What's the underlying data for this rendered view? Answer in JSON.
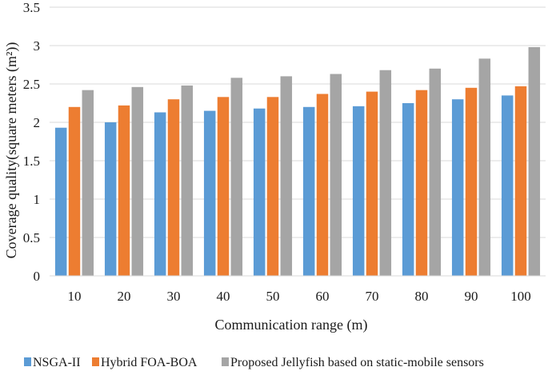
{
  "chart_data": {
    "type": "bar",
    "title": "",
    "xlabel": "Communication range (m)",
    "ylabel": "Coverage quality(square meters (m²))",
    "categories": [
      "10",
      "20",
      "30",
      "40",
      "50",
      "60",
      "70",
      "80",
      "90",
      "100"
    ],
    "yticks": [
      "0",
      "0.5",
      "1",
      "1.5",
      "2",
      "2.5",
      "3",
      "3.5"
    ],
    "ylim": [
      0,
      3.5
    ],
    "grid": true,
    "legend_position": "bottom",
    "series": [
      {
        "name": "NSGA-II",
        "color": "#5b9bd5",
        "values": [
          1.93,
          2.0,
          2.13,
          2.15,
          2.18,
          2.2,
          2.21,
          2.25,
          2.3,
          2.35
        ]
      },
      {
        "name": "Hybrid FOA-BOA",
        "color": "#ed7d31",
        "values": [
          2.2,
          2.22,
          2.3,
          2.33,
          2.33,
          2.37,
          2.4,
          2.42,
          2.45,
          2.47
        ]
      },
      {
        "name": "Proposed Jellyfish based on static-mobile sensors",
        "color": "#a5a5a5",
        "values": [
          2.42,
          2.46,
          2.48,
          2.58,
          2.6,
          2.63,
          2.68,
          2.7,
          2.83,
          2.98
        ]
      }
    ]
  }
}
